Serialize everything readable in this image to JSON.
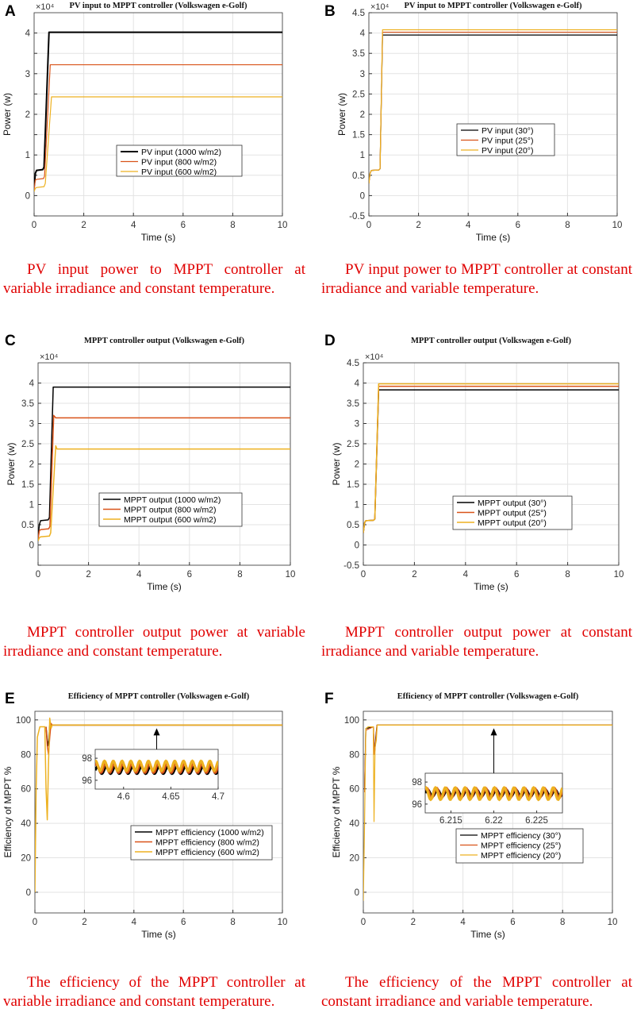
{
  "colors": {
    "black": "#000000",
    "red": "#d95319",
    "yellow": "#edb120",
    "caption": "#e00000"
  },
  "panels": [
    {
      "letter": "A",
      "caption": "PV input power to MPPT controller at variable irradiance and constant temperature."
    },
    {
      "letter": "B",
      "caption": "PV input power to MPPT controller at constant irradiance and variable temperature."
    },
    {
      "letter": "C",
      "caption": "MPPT controller output power at variable irradiance and constant temperature."
    },
    {
      "letter": "D",
      "caption": "MPPT controller output power at constant irradiance and variable temperature."
    },
    {
      "letter": "E",
      "caption": "The efficiency of the MPPT controller at variable irradiance and constant temperature."
    },
    {
      "letter": "F",
      "caption": "The efficiency of the MPPT controller at constant irradiance and variable temperature."
    }
  ],
  "chart_data": [
    {
      "type": "line",
      "title": "PV input to MPPT controller (Volkswagen e-Golf)",
      "xlabel": "Time (s)",
      "ylabel": "Power (w)",
      "exponent": "×10⁴",
      "xlim": [
        0,
        10
      ],
      "ylim": [
        -0.5,
        4.5
      ],
      "xticks": [
        0,
        2,
        4,
        6,
        8,
        10
      ],
      "yticks": [
        -0.5,
        0,
        0.5,
        1,
        1.5,
        2,
        2.5,
        3,
        3.5,
        4
      ],
      "ytick_labels": [
        "",
        "0",
        "",
        "1",
        "",
        "2",
        "",
        "3",
        "",
        "4"
      ],
      "legend": [
        "PV input (1000 w/m2)",
        "PV input (800 w/m2)",
        "PV input (600 w/m2)"
      ],
      "series": [
        {
          "name": "PV input (1000 w/m2)",
          "color": "#000000",
          "width": 2,
          "x": [
            0,
            0.05,
            0.1,
            0.35,
            0.4,
            0.6,
            10
          ],
          "y": [
            0.2,
            0.55,
            0.62,
            0.64,
            0.7,
            4.02,
            4.02
          ]
        },
        {
          "name": "PV input (800 w/m2)",
          "color": "#d95319",
          "width": 1.2,
          "x": [
            0,
            0.05,
            0.1,
            0.38,
            0.42,
            0.65,
            10
          ],
          "y": [
            0.15,
            0.38,
            0.4,
            0.42,
            0.48,
            3.22,
            3.22
          ]
        },
        {
          "name": "PV input (600 w/m2)",
          "color": "#edb120",
          "width": 1.2,
          "x": [
            0,
            0.05,
            0.1,
            0.4,
            0.45,
            0.7,
            10
          ],
          "y": [
            0.1,
            0.18,
            0.2,
            0.22,
            0.3,
            2.43,
            2.43
          ]
        }
      ]
    },
    {
      "type": "line",
      "title": "PV input to MPPT controller (Volkswagen e-Golf)",
      "xlabel": "Time (s)",
      "ylabel": "Power (w)",
      "exponent": "×10⁴",
      "xlim": [
        0,
        10
      ],
      "ylim": [
        -0.5,
        4.5
      ],
      "xticks": [
        0,
        2,
        4,
        6,
        8,
        10
      ],
      "yticks": [
        -0.5,
        0,
        0.5,
        1,
        1.5,
        2,
        2.5,
        3,
        3.5,
        4,
        4.5
      ],
      "ytick_labels": [
        "-0.5",
        "0",
        "0.5",
        "1",
        "1.5",
        "2",
        "2.5",
        "3",
        "3.5",
        "4",
        "4.5"
      ],
      "legend": [
        "PV input (30°)",
        "PV input (25°)",
        "PV input (20°)"
      ],
      "series": [
        {
          "name": "PV input (30°)",
          "color": "#000000",
          "width": 1.2,
          "x": [
            0,
            0.05,
            0.1,
            0.4,
            0.45,
            0.55,
            10
          ],
          "y": [
            0.3,
            0.55,
            0.62,
            0.63,
            0.66,
            3.95,
            3.95
          ]
        },
        {
          "name": "PV input (25°)",
          "color": "#d95319",
          "width": 1.2,
          "x": [
            0,
            0.05,
            0.1,
            0.4,
            0.45,
            0.55,
            10
          ],
          "y": [
            0.3,
            0.55,
            0.62,
            0.63,
            0.66,
            4.02,
            4.02
          ]
        },
        {
          "name": "PV input (20°)",
          "color": "#edb120",
          "width": 1.2,
          "x": [
            0,
            0.05,
            0.1,
            0.4,
            0.45,
            0.55,
            10
          ],
          "y": [
            0.3,
            0.55,
            0.62,
            0.63,
            0.66,
            4.08,
            4.08
          ]
        }
      ]
    },
    {
      "type": "line",
      "title": "MPPT controller output (Volkswagen e-Golf)",
      "xlabel": "Time (s)",
      "ylabel": "Power (w)",
      "exponent": "×10⁴",
      "xlim": [
        0,
        10
      ],
      "ylim": [
        -0.5,
        4.5
      ],
      "xticks": [
        0,
        2,
        4,
        6,
        8,
        10
      ],
      "yticks": [
        -0.5,
        0,
        0.5,
        1,
        1.5,
        2,
        2.5,
        3,
        3.5,
        4
      ],
      "ytick_labels": [
        "",
        "0",
        "0.5",
        "1",
        "1.5",
        "2",
        "2.5",
        "3",
        "3.5",
        "4"
      ],
      "legend": [
        "MPPT output (1000 w/m2)",
        "MPPT output (800 w/m2)",
        "MPPT output (600 w/m2)"
      ],
      "series": [
        {
          "name": "MPPT output (1000 w/m2)",
          "color": "#000000",
          "width": 1.5,
          "x": [
            0,
            0.05,
            0.1,
            0.4,
            0.45,
            0.6,
            10
          ],
          "y": [
            0.2,
            0.5,
            0.6,
            0.62,
            0.68,
            3.9,
            3.9
          ]
        },
        {
          "name": "MPPT output (800 w/m2)",
          "color": "#d95319",
          "width": 1.5,
          "x": [
            0,
            0.05,
            0.1,
            0.42,
            0.47,
            0.62,
            0.7,
            10
          ],
          "y": [
            0.15,
            0.35,
            0.38,
            0.4,
            0.46,
            3.2,
            3.14,
            3.14
          ]
        },
        {
          "name": "MPPT output (600 w/m2)",
          "color": "#edb120",
          "width": 1.5,
          "x": [
            0,
            0.05,
            0.1,
            0.45,
            0.5,
            0.7,
            0.75,
            10
          ],
          "y": [
            0.1,
            0.18,
            0.2,
            0.22,
            0.3,
            2.45,
            2.37,
            2.37
          ]
        }
      ]
    },
    {
      "type": "line",
      "title": "MPPT controller output (Volkswagen e-Golf)",
      "xlabel": "Time (s)",
      "ylabel": "Power (w)",
      "exponent": "×10⁴",
      "xlim": [
        0,
        10
      ],
      "ylim": [
        -0.5,
        4.5
      ],
      "xticks": [
        0,
        2,
        4,
        6,
        8,
        10
      ],
      "yticks": [
        -0.5,
        0,
        0.5,
        1,
        1.5,
        2,
        2.5,
        3,
        3.5,
        4,
        4.5
      ],
      "ytick_labels": [
        "-0.5",
        "0",
        "0.5",
        "1",
        "1.5",
        "2",
        "2.5",
        "3",
        "3.5",
        "4",
        "4.5"
      ],
      "legend": [
        "MPPT output (30°)",
        "MPPT output (25°)",
        "MPPT output (20°)"
      ],
      "series": [
        {
          "name": "MPPT output (30°)",
          "color": "#000000",
          "width": 1.5,
          "x": [
            0,
            0.05,
            0.1,
            0.4,
            0.45,
            0.6,
            10
          ],
          "y": [
            0.3,
            0.55,
            0.6,
            0.61,
            0.64,
            3.83,
            3.83
          ]
        },
        {
          "name": "MPPT output (25°)",
          "color": "#d95319",
          "width": 1.5,
          "x": [
            0,
            0.05,
            0.1,
            0.4,
            0.45,
            0.6,
            10
          ],
          "y": [
            0.3,
            0.55,
            0.6,
            0.61,
            0.64,
            3.92,
            3.92
          ]
        },
        {
          "name": "MPPT output (20°)",
          "color": "#edb120",
          "width": 1.5,
          "x": [
            0,
            0.05,
            0.1,
            0.4,
            0.45,
            0.6,
            10
          ],
          "y": [
            0.3,
            0.55,
            0.6,
            0.61,
            0.64,
            3.98,
            3.98
          ]
        }
      ]
    },
    {
      "type": "line",
      "title": "Efficiency of MPPT controller (Volkswagen e-Golf)",
      "xlabel": "Time (s)",
      "ylabel": "Efficiency of MPPT %",
      "xlim": [
        0,
        10
      ],
      "ylim": [
        -12,
        105
      ],
      "xticks": [
        0,
        2,
        4,
        6,
        8,
        10
      ],
      "yticks": [
        0,
        20,
        40,
        60,
        80,
        100
      ],
      "ytick_labels": [
        "0",
        "20",
        "40",
        "60",
        "80",
        "100"
      ],
      "legend": [
        "MPPT efficiency (1000 w/m2)",
        "MPPT efficiency (800 w/m2)",
        "MPPT efficiency (600 w/m2)"
      ],
      "series": [
        {
          "name": "MPPT efficiency (1000 w/m2)",
          "color": "#000000",
          "width": 1.5,
          "x": [
            0.45,
            0.5,
            0.55,
            0.6,
            0.65,
            10
          ],
          "y": [
            96,
            88,
            85,
            97,
            97,
            97
          ]
        },
        {
          "name": "MPPT efficiency (800 w/m2)",
          "color": "#d95319",
          "width": 1.5,
          "x": [
            0.45,
            0.5,
            0.55,
            0.6,
            0.65,
            0.7,
            10
          ],
          "y": [
            96,
            85,
            80,
            90,
            98,
            97,
            97
          ]
        },
        {
          "name": "MPPT efficiency (600 w/m2)",
          "color": "#edb120",
          "width": 1.5,
          "x": [
            0,
            0.05,
            0.1,
            0.2,
            0.3,
            0.4,
            0.45,
            0.5,
            0.55,
            0.6,
            0.65,
            0.7,
            10
          ],
          "y": [
            0,
            60,
            90,
            96,
            96,
            96,
            60,
            42,
            75,
            101,
            95,
            97,
            97
          ]
        }
      ],
      "inset": {
        "xlim": [
          4.57,
          4.7
        ],
        "ylim": [
          95.2,
          98.8
        ],
        "xticks": [
          4.6,
          4.65,
          4.7
        ],
        "xtick_labels": [
          "4.6",
          "4.65",
          "4.7"
        ],
        "yticks": [
          96,
          98
        ],
        "ytick_labels": [
          "96",
          "98"
        ],
        "lines": [
          {
            "color": "#000000",
            "y": 96.9,
            "amp": 0.3
          },
          {
            "color": "#d95319",
            "y": 97.1,
            "amp": 0.4
          },
          {
            "color": "#edb120",
            "y": 97.3,
            "amp": 0.45
          }
        ]
      }
    },
    {
      "type": "line",
      "title": "Efficiency of MPPT controller (Volkswagen e-Golf)",
      "xlabel": "Time (s)",
      "ylabel": "Efficiency of MPPT %",
      "xlim": [
        0,
        10
      ],
      "ylim": [
        -12,
        105
      ],
      "xticks": [
        0,
        2,
        4,
        6,
        8,
        10
      ],
      "yticks": [
        0,
        20,
        40,
        60,
        80,
        100
      ],
      "ytick_labels": [
        "0",
        "20",
        "40",
        "60",
        "80",
        "100"
      ],
      "legend": [
        "MPPT efficiency (30°)",
        "MPPT efficiency (25°)",
        "MPPT efficiency (20°)"
      ],
      "series": [
        {
          "name": "MPPT efficiency (30°)",
          "color": "#000000",
          "width": 1.2,
          "x": [
            0.05,
            0.1,
            0.4,
            0.45,
            0.5,
            0.55,
            0.6,
            10
          ],
          "y": [
            60,
            95,
            96,
            80,
            90,
            97,
            97,
            97
          ]
        },
        {
          "name": "MPPT efficiency (25°)",
          "color": "#d95319",
          "width": 1.2,
          "x": [
            0.05,
            0.1,
            0.4,
            0.45,
            0.5,
            0.55,
            0.6,
            10
          ],
          "y": [
            58,
            94,
            96,
            80,
            88,
            97,
            97,
            97
          ]
        },
        {
          "name": "MPPT efficiency (20°)",
          "color": "#edb120",
          "width": 1.2,
          "x": [
            0,
            0.05,
            0.1,
            0.2,
            0.4,
            0.43,
            0.47,
            0.52,
            0.56,
            10
          ],
          "y": [
            -5,
            40,
            95,
            96,
            96,
            41,
            84,
            88,
            97,
            97
          ]
        }
      ],
      "inset": {
        "xlim": [
          6.212,
          6.228
        ],
        "ylim": [
          95.2,
          98.8
        ],
        "xticks": [
          6.215,
          6.22,
          6.225
        ],
        "xtick_labels": [
          "6.215",
          "6.22",
          "6.225"
        ],
        "yticks": [
          96,
          98
        ],
        "ytick_labels": [
          "96",
          "98"
        ],
        "lines": [
          {
            "color": "#000000",
            "y": 97.0,
            "amp": 0.3
          },
          {
            "color": "#d95319",
            "y": 97.0,
            "amp": 0.45
          },
          {
            "color": "#edb120",
            "y": 96.95,
            "amp": 0.55
          }
        ]
      }
    }
  ]
}
